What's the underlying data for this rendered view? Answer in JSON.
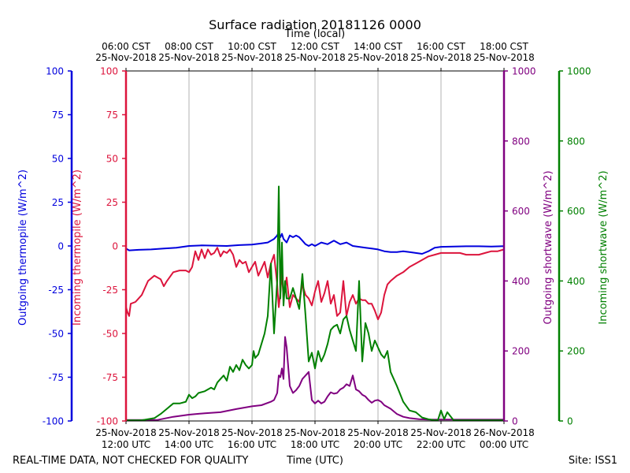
{
  "chart_data": {
    "type": "line",
    "title": "Surface radiation 20181126 0000",
    "xlabel": "Time (UTC)",
    "xlabel_top": "Time (local)",
    "x_range_hours_utc": [
      12,
      24
    ],
    "x_bottom_ticks": [
      {
        "hour": 12,
        "line1": "25-Nov-2018",
        "line2": "12:00 UTC"
      },
      {
        "hour": 14,
        "line1": "25-Nov-2018",
        "line2": "14:00 UTC"
      },
      {
        "hour": 16,
        "line1": "25-Nov-2018",
        "line2": "16:00 UTC"
      },
      {
        "hour": 18,
        "line1": "25-Nov-2018",
        "line2": "18:00 UTC"
      },
      {
        "hour": 20,
        "line1": "25-Nov-2018",
        "line2": "20:00 UTC"
      },
      {
        "hour": 22,
        "line1": "25-Nov-2018",
        "line2": "22:00 UTC"
      },
      {
        "hour": 24,
        "line1": "26-Nov-2018",
        "line2": "00:00 UTC"
      }
    ],
    "x_top_ticks": [
      {
        "hour": 12,
        "line1": "06:00 CST",
        "line2": "25-Nov-2018"
      },
      {
        "hour": 14,
        "line1": "08:00 CST",
        "line2": "25-Nov-2018"
      },
      {
        "hour": 16,
        "line1": "10:00 CST",
        "line2": "25-Nov-2018"
      },
      {
        "hour": 18,
        "line1": "12:00 CST",
        "line2": "25-Nov-2018"
      },
      {
        "hour": 20,
        "line1": "14:00 CST",
        "line2": "25-Nov-2018"
      },
      {
        "hour": 22,
        "line1": "16:00 CST",
        "line2": "25-Nov-2018"
      },
      {
        "hour": 24,
        "line1": "18:00 CST",
        "line2": "25-Nov-2018"
      }
    ],
    "grid": "vertical",
    "axes": [
      {
        "id": "out_thermo",
        "label": "Outgoing thermopile (W/m^2)",
        "color": "#0000dd",
        "ylim": [
          -100,
          100
        ],
        "ticks": [
          -100,
          -75,
          -50,
          -25,
          0,
          25,
          50,
          75,
          100
        ],
        "side": "left-outer"
      },
      {
        "id": "in_thermo",
        "label": "Incoming thermopile (W/m^2)",
        "color": "#dc143c",
        "ylim": [
          -100,
          100
        ],
        "ticks": [
          -100,
          -75,
          -50,
          -25,
          0,
          25,
          50,
          75,
          100
        ],
        "side": "left-inner"
      },
      {
        "id": "out_sw",
        "label": "Outgoing shortwave (W/m^2)",
        "color": "#800080",
        "ylim": [
          0,
          1000
        ],
        "ticks": [
          0,
          200,
          400,
          600,
          800,
          1000
        ],
        "side": "right-inner"
      },
      {
        "id": "in_sw",
        "label": "Incoming shortwave (W/m^2)",
        "color": "#008000",
        "ylim": [
          0,
          1000
        ],
        "ticks": [
          0,
          200,
          400,
          600,
          800,
          1000
        ],
        "side": "right-outer"
      }
    ],
    "series": [
      {
        "name": "Outgoing thermopile",
        "axis": "out_thermo",
        "color": "#0000dd",
        "x": [
          12,
          12.1,
          12.4,
          12.8,
          13.2,
          13.6,
          14,
          14.4,
          14.8,
          15.2,
          15.6,
          16,
          16.3,
          16.5,
          16.7,
          16.8,
          16.85,
          16.9,
          16.95,
          17,
          17.1,
          17.2,
          17.3,
          17.4,
          17.5,
          17.6,
          17.7,
          17.8,
          17.9,
          18,
          18.2,
          18.4,
          18.6,
          18.8,
          19,
          19.2,
          19.4,
          19.6,
          19.8,
          20,
          20.2,
          20.4,
          20.6,
          20.8,
          21,
          21.2,
          21.4,
          21.6,
          21.8,
          22,
          22.4,
          22.8,
          23.2,
          23.6,
          24
        ],
        "values": [
          -1.5,
          -2.5,
          -2.2,
          -2,
          -1.5,
          -1,
          0,
          0.3,
          0.2,
          0,
          0.5,
          0.8,
          1.5,
          2,
          4,
          6,
          8,
          5,
          7,
          4,
          2,
          6,
          5,
          6,
          5,
          3,
          1,
          0,
          1,
          0,
          2,
          1,
          3,
          1,
          2,
          0,
          -0.5,
          -1,
          -1.5,
          -2,
          -3,
          -3.5,
          -3.5,
          -3,
          -3.5,
          -4,
          -4.5,
          -3,
          -1,
          -0.5,
          -0.3,
          -0.2,
          -0.2,
          -0.3,
          -0.1
        ]
      },
      {
        "name": "Incoming thermopile",
        "axis": "in_thermo",
        "color": "#dc143c",
        "x": [
          12,
          12.05,
          12.1,
          12.15,
          12.3,
          12.5,
          12.7,
          12.9,
          13.1,
          13.2,
          13.3,
          13.5,
          13.7,
          13.9,
          14,
          14.1,
          14.2,
          14.3,
          14.4,
          14.5,
          14.6,
          14.7,
          14.8,
          14.9,
          15,
          15.1,
          15.2,
          15.3,
          15.4,
          15.5,
          15.6,
          15.7,
          15.8,
          15.9,
          16,
          16.1,
          16.2,
          16.3,
          16.4,
          16.5,
          16.6,
          16.7,
          16.8,
          16.85,
          16.9,
          16.95,
          17,
          17.05,
          17.1,
          17.2,
          17.3,
          17.4,
          17.5,
          17.6,
          17.7,
          17.8,
          17.9,
          18,
          18.1,
          18.2,
          18.3,
          18.4,
          18.5,
          18.6,
          18.7,
          18.8,
          18.9,
          19,
          19.1,
          19.2,
          19.3,
          19.4,
          19.5,
          19.6,
          19.7,
          19.8,
          19.9,
          20,
          20.1,
          20.2,
          20.3,
          20.4,
          20.6,
          20.8,
          21,
          21.2,
          21.4,
          21.6,
          21.8,
          22,
          22.2,
          22.4,
          22.6,
          22.8,
          23,
          23.2,
          23.4,
          23.6,
          23.8,
          24
        ],
        "values": [
          -35,
          -38,
          -40,
          -33,
          -32,
          -28,
          -20,
          -17,
          -19,
          -23,
          -20,
          -15,
          -14,
          -14,
          -15,
          -12,
          -3,
          -8,
          -2,
          -7,
          -2,
          -5,
          -4,
          -1,
          -6,
          -3,
          -4,
          -2,
          -5,
          -12,
          -8,
          -10,
          -9,
          -15,
          -12,
          -9,
          -17,
          -13,
          -9,
          -18,
          -10,
          -5,
          -22,
          -35,
          -27,
          -15,
          -30,
          -25,
          -18,
          -35,
          -28,
          -30,
          -32,
          -22,
          -28,
          -30,
          -34,
          -26,
          -20,
          -32,
          -27,
          -20,
          -33,
          -28,
          -40,
          -38,
          -20,
          -40,
          -32,
          -28,
          -33,
          -30,
          -31,
          -31,
          -33,
          -33,
          -37,
          -42,
          -38,
          -28,
          -22,
          -20,
          -17,
          -15,
          -12,
          -10,
          -8,
          -6,
          -5,
          -4,
          -4,
          -4,
          -4,
          -5,
          -5,
          -5,
          -4,
          -3,
          -3,
          -2
        ]
      },
      {
        "name": "Outgoing shortwave",
        "axis": "out_sw",
        "color": "#800080",
        "x": [
          12,
          12.5,
          13,
          13.5,
          14,
          14.5,
          15,
          15.5,
          16,
          16.3,
          16.6,
          16.7,
          16.8,
          16.85,
          16.9,
          16.95,
          17,
          17.05,
          17.1,
          17.2,
          17.3,
          17.4,
          17.5,
          17.6,
          17.7,
          17.8,
          17.9,
          18,
          18.1,
          18.2,
          18.3,
          18.4,
          18.5,
          18.6,
          18.7,
          18.8,
          18.9,
          19,
          19.1,
          19.2,
          19.3,
          19.4,
          19.5,
          19.6,
          19.7,
          19.8,
          19.9,
          20,
          20.1,
          20.2,
          20.4,
          20.6,
          20.8,
          21,
          21.3,
          21.6,
          22,
          22.5,
          23,
          23.5,
          24
        ],
        "values": [
          3,
          3,
          3,
          12,
          18,
          22,
          25,
          34,
          42,
          45,
          55,
          60,
          80,
          130,
          125,
          150,
          120,
          240,
          210,
          100,
          80,
          88,
          100,
          120,
          130,
          140,
          60,
          50,
          58,
          50,
          55,
          70,
          82,
          78,
          80,
          90,
          95,
          105,
          100,
          130,
          90,
          85,
          75,
          70,
          60,
          52,
          58,
          60,
          55,
          45,
          35,
          20,
          12,
          8,
          5,
          4,
          4,
          4,
          4,
          4,
          4
        ]
      },
      {
        "name": "Incoming shortwave",
        "axis": "in_sw",
        "color": "#008000",
        "x": [
          12,
          12.5,
          12.9,
          13.1,
          13.3,
          13.5,
          13.7,
          13.9,
          14,
          14.1,
          14.2,
          14.3,
          14.5,
          14.7,
          14.8,
          14.9,
          15,
          15.1,
          15.2,
          15.3,
          15.4,
          15.5,
          15.6,
          15.7,
          15.8,
          15.9,
          16,
          16.05,
          16.1,
          16.2,
          16.3,
          16.4,
          16.5,
          16.6,
          16.7,
          16.8,
          16.85,
          16.9,
          16.95,
          17,
          17.05,
          17.1,
          17.2,
          17.3,
          17.4,
          17.5,
          17.6,
          17.7,
          17.8,
          17.9,
          18,
          18.1,
          18.2,
          18.3,
          18.4,
          18.5,
          18.6,
          18.7,
          18.8,
          18.9,
          19,
          19.1,
          19.2,
          19.3,
          19.4,
          19.5,
          19.6,
          19.7,
          19.8,
          19.9,
          20,
          20.1,
          20.2,
          20.3,
          20.4,
          20.6,
          20.8,
          21,
          21.2,
          21.4,
          21.6,
          21.8,
          21.9,
          22,
          22.1,
          22.2,
          22.4,
          22.8,
          23.2,
          23.6,
          24
        ],
        "values": [
          2,
          2,
          8,
          20,
          35,
          50,
          50,
          55,
          75,
          65,
          70,
          80,
          85,
          95,
          90,
          110,
          120,
          130,
          115,
          155,
          140,
          160,
          145,
          175,
          160,
          150,
          160,
          200,
          180,
          190,
          220,
          250,
          300,
          450,
          250,
          400,
          670,
          350,
          510,
          330,
          400,
          350,
          350,
          380,
          350,
          320,
          420,
          300,
          170,
          195,
          150,
          200,
          170,
          190,
          220,
          260,
          270,
          275,
          250,
          290,
          300,
          260,
          230,
          200,
          400,
          170,
          280,
          250,
          200,
          230,
          210,
          190,
          180,
          200,
          140,
          100,
          55,
          30,
          25,
          10,
          5,
          2,
          2,
          30,
          5,
          25,
          2,
          2,
          2,
          2,
          2
        ]
      }
    ]
  },
  "footer": {
    "left": "REAL-TIME DATA, NOT CHECKED FOR QUALITY",
    "right": "Site: ISS1"
  }
}
